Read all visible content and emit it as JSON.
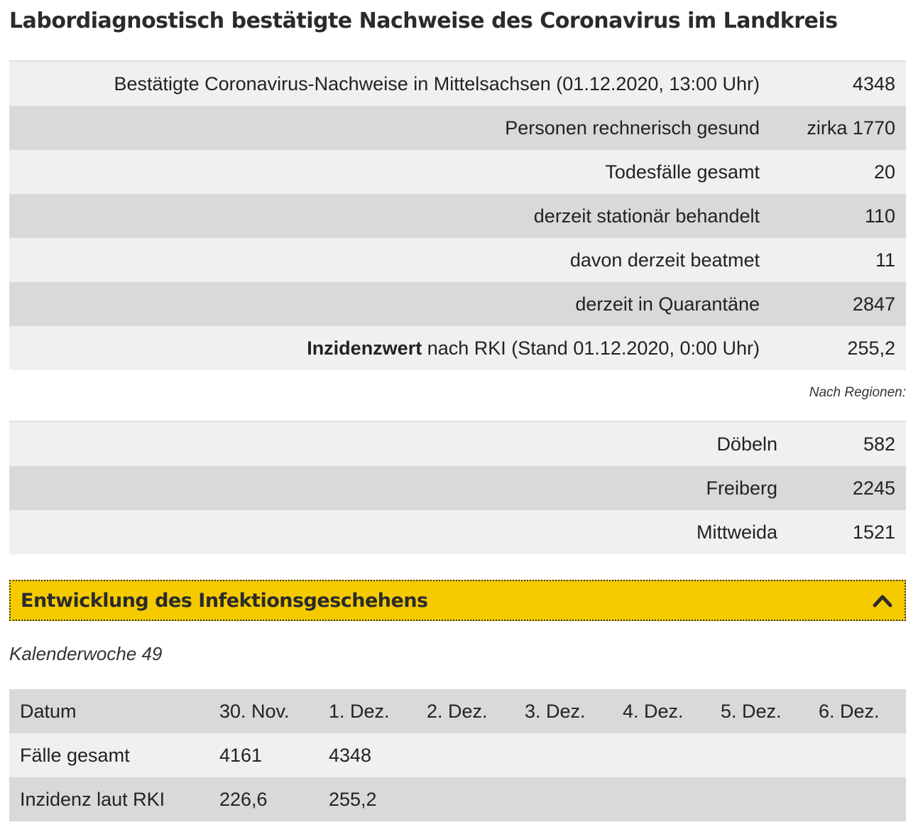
{
  "page": {
    "title": "Labordiagnostisch bestätigte Nachweise des Coronavirus im Landkreis"
  },
  "summary": {
    "rows": [
      {
        "label": "Bestätigte Coronavirus-Nachweise in Mittelsachsen (01.12.2020, 13:00 Uhr)",
        "value": "4348"
      },
      {
        "label": "Personen rechnerisch gesund",
        "value": "zirka 1770"
      },
      {
        "label": "Todesfälle gesamt",
        "value": "20"
      },
      {
        "label": "derzeit stationär behandelt",
        "value": "110"
      },
      {
        "label": "davon derzeit beatmet",
        "value": "11"
      },
      {
        "label": "derzeit in Quarantäne",
        "value": "2847"
      },
      {
        "label_bold": "Inzidenzwert",
        "label": " nach RKI (Stand 01.12.2020, 0:00 Uhr)",
        "value": "255,2"
      }
    ]
  },
  "regions": {
    "note": "Nach Regionen:",
    "rows": [
      {
        "label": "Döbeln",
        "value": "582"
      },
      {
        "label": "Freiberg",
        "value": "2245"
      },
      {
        "label": "Mittweida",
        "value": "1521"
      }
    ]
  },
  "accordion": {
    "title": "Entwicklung des Infektionsgeschehens",
    "icon": "chevron-up-icon",
    "color": "#f5cb00"
  },
  "week": {
    "label": "Kalenderwoche 49",
    "header": [
      "Datum",
      "30. Nov.",
      "1. Dez.",
      "2. Dez.",
      "3. Dez.",
      "4. Dez.",
      "5. Dez.",
      "6. Dez."
    ],
    "rows": [
      [
        "Fälle gesamt",
        "4161",
        "4348",
        "",
        "",
        "",
        "",
        ""
      ],
      [
        "Inzidenz laut RKI",
        "226,6",
        "255,2",
        "",
        "",
        "",
        "",
        ""
      ]
    ]
  }
}
